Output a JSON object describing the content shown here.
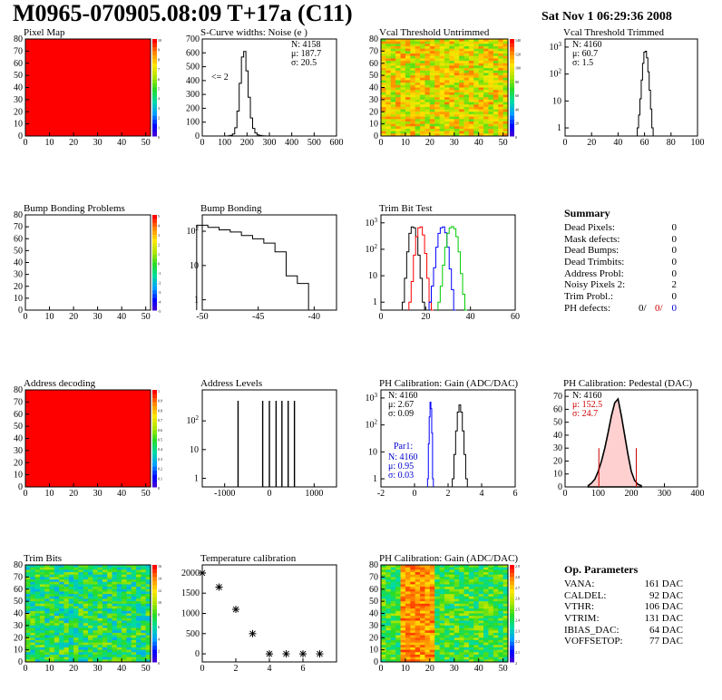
{
  "header": {
    "title": "M0965-070905.08:09 T+17a (C11)",
    "date": "Sat Nov  1 06:29:36 2008"
  },
  "colors": {
    "map_red": "#ff0000",
    "hist_black": "#000000",
    "trim_red": "#ff0000",
    "trim_blue": "#0000ff",
    "trim_green": "#00cc00",
    "stat_red": "#cc0000",
    "stat_blue": "#0000cc"
  },
  "summary": {
    "title": "Summary",
    "rows": [
      {
        "label": "Dead Pixels:",
        "value": "0"
      },
      {
        "label": "Mask defects:",
        "value": "0"
      },
      {
        "label": "Dead Bumps:",
        "value": "0"
      },
      {
        "label": "Dead Trimbits:",
        "value": "0"
      },
      {
        "label": "Address Probl:",
        "value": "0"
      },
      {
        "label": "Noisy Pixels 2:",
        "value": "2"
      },
      {
        "label": "Trim Probl.:",
        "value": "0"
      }
    ],
    "ph_label": "PH defects:",
    "ph_values": [
      "0/",
      "0/",
      "0"
    ]
  },
  "op_params": {
    "title": "Op. Parameters",
    "rows": [
      {
        "label": "VANA:",
        "value": "161 DAC"
      },
      {
        "label": "CALDEL:",
        "value": "92 DAC"
      },
      {
        "label": "VTHR:",
        "value": "106 DAC"
      },
      {
        "label": "VTRIM:",
        "value": "131 DAC"
      },
      {
        "label": "IBIAS_DAC:",
        "value": "64 DAC"
      },
      {
        "label": "VOFFSETOP:",
        "value": "77 DAC"
      }
    ]
  },
  "chart_data": [
    {
      "id": "pixel_map",
      "type": "heatmap",
      "title": "Pixel Map",
      "xlim": [
        0,
        52
      ],
      "ylim": [
        0,
        80
      ],
      "xticks": [
        0,
        10,
        20,
        30,
        40,
        50
      ],
      "yticks": [
        0,
        10,
        20,
        30,
        40,
        50,
        60,
        70,
        80
      ],
      "pattern": "uniform",
      "zlim": [
        0,
        10
      ],
      "zticks": [
        "10",
        "9",
        "8",
        "7",
        "6",
        "5",
        "4",
        "3",
        "2",
        "1",
        "0"
      ]
    },
    {
      "id": "scurve",
      "type": "line",
      "title": "S-Curve widths: Noise (e )",
      "xlim": [
        0,
        600
      ],
      "ylim": [
        0,
        700
      ],
      "xticks": [
        0,
        100,
        200,
        300,
        400,
        500,
        600
      ],
      "yticks": [
        0,
        100,
        200,
        300,
        400,
        500,
        600,
        700
      ],
      "stats": [
        "N: 4158",
        "μ: 187.7",
        "σ: 20.5"
      ],
      "annotation": "<= 2",
      "x": [
        120,
        130,
        140,
        150,
        160,
        170,
        180,
        190,
        200,
        210,
        220,
        230,
        240,
        250,
        260,
        270,
        280,
        290
      ],
      "y": [
        2,
        5,
        15,
        60,
        180,
        380,
        570,
        610,
        470,
        280,
        130,
        55,
        22,
        8,
        4,
        2,
        1,
        0
      ]
    },
    {
      "id": "vcal_untrimmed",
      "type": "heatmap",
      "title": "Vcal Threshold Untrimmed",
      "xlim": [
        0,
        52
      ],
      "ylim": [
        0,
        80
      ],
      "xticks": [
        0,
        10,
        20,
        30,
        40,
        50
      ],
      "yticks": [
        0,
        10,
        20,
        30,
        40,
        50,
        60,
        70,
        80
      ],
      "pattern": "noisy_warm",
      "zlim": [
        0,
        140
      ],
      "zticks": [
        "140",
        "120",
        "100",
        "80",
        "60",
        "40",
        "20",
        "0"
      ]
    },
    {
      "id": "vcal_trimmed",
      "type": "line",
      "title": "Vcal Threshold Trimmed",
      "log": true,
      "xlim": [
        0,
        100
      ],
      "ylim": [
        0.5,
        2000
      ],
      "xticks": [
        0,
        20,
        40,
        60,
        80,
        100
      ],
      "yticks": [
        1,
        10,
        100,
        1000
      ],
      "stats": [
        "N: 4160",
        "μ: 60.7",
        "σ:  1.5"
      ],
      "x": [
        55,
        56,
        57,
        58,
        59,
        60,
        61,
        62,
        63,
        64,
        65,
        66,
        67
      ],
      "y": [
        1,
        3,
        12,
        60,
        250,
        650,
        700,
        400,
        120,
        25,
        5,
        1,
        0
      ]
    },
    {
      "id": "bump_problems",
      "type": "heatmap",
      "title": "Bump Bonding Problems",
      "xlim": [
        0,
        52
      ],
      "ylim": [
        0,
        80
      ],
      "xticks": [
        0,
        10,
        20,
        30,
        40,
        50
      ],
      "yticks": [
        0,
        10,
        20,
        30,
        40,
        50,
        60,
        70,
        80
      ],
      "pattern": "empty",
      "zlim": [
        -5,
        5
      ],
      "zticks": [
        "5",
        "4",
        "3",
        "2",
        "1",
        "0",
        "-1",
        "-2",
        "-3",
        "-4",
        "-5"
      ]
    },
    {
      "id": "bump_bonding",
      "type": "line",
      "title": "Bump Bonding",
      "log": true,
      "xlim": [
        -50,
        -38
      ],
      "ylim": [
        0.5,
        300
      ],
      "xticks": [
        -50,
        -45,
        -40
      ],
      "yticks": [
        1,
        10,
        100
      ],
      "x": [
        -50,
        -49,
        -48,
        -47,
        -46,
        -45,
        -44,
        -43,
        -42,
        -41,
        -40
      ],
      "y": [
        150,
        130,
        110,
        95,
        75,
        60,
        45,
        25,
        5,
        3,
        0
      ]
    },
    {
      "id": "trim_bit_test",
      "type": "line",
      "title": "Trim Bit Test",
      "log": true,
      "xlim": [
        0,
        60
      ],
      "ylim": [
        0.5,
        2000
      ],
      "xticks": [
        0,
        20,
        40,
        60
      ],
      "yticks": [
        1,
        10,
        100,
        1000
      ],
      "series": [
        {
          "color": "#000000",
          "x": [
            10,
            11,
            12,
            13,
            14,
            15,
            16,
            17,
            18,
            19,
            20
          ],
          "y": [
            1,
            8,
            80,
            400,
            700,
            650,
            300,
            60,
            8,
            1,
            0
          ]
        },
        {
          "color": "#ff0000",
          "x": [
            13,
            14,
            15,
            16,
            17,
            18,
            19,
            20,
            21,
            22,
            23
          ],
          "y": [
            1,
            6,
            60,
            300,
            650,
            700,
            350,
            70,
            8,
            1,
            0
          ]
        },
        {
          "color": "#0000ff",
          "x": [
            22,
            23,
            24,
            25,
            26,
            27,
            28,
            29,
            30,
            31,
            32,
            33
          ],
          "y": [
            1,
            4,
            20,
            120,
            400,
            650,
            700,
            420,
            120,
            18,
            3,
            0
          ]
        },
        {
          "color": "#00cc00",
          "x": [
            26,
            27,
            28,
            29,
            30,
            31,
            32,
            33,
            34,
            35,
            36,
            37,
            38
          ],
          "y": [
            1,
            4,
            25,
            120,
            400,
            650,
            720,
            600,
            300,
            80,
            12,
            2,
            0
          ]
        }
      ]
    },
    {
      "id": "address_decoding",
      "type": "heatmap",
      "title": "Address decoding",
      "xlim": [
        0,
        52
      ],
      "ylim": [
        0,
        80
      ],
      "xticks": [
        0,
        10,
        20,
        30,
        40,
        50
      ],
      "yticks": [
        0,
        10,
        20,
        30,
        40,
        50,
        60,
        70,
        80
      ],
      "pattern": "uniform",
      "zlim": [
        0,
        1
      ],
      "zticks": [
        "1",
        "0.9",
        "0.8",
        "0.7",
        "0.6",
        "0.5",
        "0.4",
        "0.3",
        "0.2",
        "0.1",
        "0"
      ]
    },
    {
      "id": "address_levels",
      "type": "line",
      "title": "Address Levels",
      "log": true,
      "xlim": [
        -1500,
        1500
      ],
      "ylim": [
        0.5,
        1200
      ],
      "xticks": [
        -1000,
        0,
        1000
      ],
      "yticks": [
        1,
        10,
        100
      ],
      "peaks": [
        -700,
        -150,
        0,
        150,
        280,
        420,
        560
      ]
    },
    {
      "id": "ph_gain",
      "type": "line",
      "title": "PH Calibration: Gain (ADC/DAC)",
      "log": true,
      "xlim": [
        -2,
        6
      ],
      "ylim": [
        0.5,
        2000
      ],
      "xticks": [
        -2,
        0,
        2,
        4,
        6
      ],
      "yticks": [
        1,
        10,
        100,
        1000
      ],
      "stats": [
        "N: 4160",
        "μ: 2.67",
        "σ: 0.09"
      ],
      "stats2_title": "Par1:",
      "stats2": [
        "N: 4160",
        "μ: 0.95",
        "σ: 0.03"
      ],
      "series": [
        {
          "color": "#0000ff",
          "x": [
            0.8,
            0.85,
            0.9,
            0.95,
            1.0,
            1.05,
            1.1
          ],
          "y": [
            1,
            20,
            200,
            700,
            400,
            50,
            1
          ]
        },
        {
          "color": "#000000",
          "x": [
            2.3,
            2.4,
            2.5,
            2.6,
            2.7,
            2.8,
            2.9,
            3.0,
            3.1
          ],
          "y": [
            1,
            8,
            60,
            300,
            550,
            300,
            60,
            8,
            1
          ]
        }
      ]
    },
    {
      "id": "ph_pedestal",
      "type": "line",
      "title": "PH Calibration: Pedestal (DAC)",
      "xlim": [
        0,
        400
      ],
      "ylim": [
        0,
        75
      ],
      "xticks": [
        0,
        100,
        200,
        300,
        400
      ],
      "yticks": [
        0,
        10,
        20,
        30,
        40,
        50,
        60,
        70
      ],
      "stats": [
        "N: 4160",
        "μ: 152.5",
        "σ: 24.7"
      ],
      "x": [
        70,
        80,
        90,
        100,
        110,
        120,
        130,
        140,
        150,
        160,
        170,
        180,
        190,
        200,
        210,
        220,
        230
      ],
      "y": [
        1,
        3,
        6,
        12,
        20,
        30,
        42,
        55,
        65,
        68,
        55,
        40,
        25,
        12,
        5,
        2,
        1
      ],
      "markers": [
        102,
        215
      ]
    },
    {
      "id": "trim_bits",
      "type": "heatmap",
      "title": "Trim Bits",
      "xlim": [
        0,
        52
      ],
      "ylim": [
        0,
        80
      ],
      "xticks": [
        0,
        10,
        20,
        30,
        40,
        50
      ],
      "yticks": [
        0,
        10,
        20,
        30,
        40,
        50,
        60,
        70,
        80
      ],
      "pattern": "noisy_green",
      "zlim": [
        0,
        16
      ],
      "zticks": [
        "16",
        "14",
        "12",
        "10",
        "8",
        "6",
        "4",
        "2",
        "0"
      ]
    },
    {
      "id": "temperature",
      "type": "scatter",
      "title": "Temperature calibration",
      "xlim": [
        0,
        8
      ],
      "ylim": [
        -200,
        2200
      ],
      "xticks": [
        0,
        2,
        4,
        6
      ],
      "yticks": [
        0,
        500,
        1000,
        1500,
        2000
      ],
      "x": [
        0,
        1,
        2,
        3,
        4,
        5,
        6,
        7
      ],
      "y": [
        2000,
        1650,
        1100,
        500,
        0,
        0,
        0,
        0
      ]
    },
    {
      "id": "ph_gain_map",
      "type": "heatmap",
      "title": "PH Calibration: Gain (ADC/DAC)",
      "xlim": [
        0,
        52
      ],
      "ylim": [
        0,
        80
      ],
      "xticks": [
        0,
        10,
        20,
        30,
        40,
        50
      ],
      "yticks": [
        0,
        10,
        20,
        30,
        40,
        50,
        60,
        70,
        80
      ],
      "pattern": "gain_cols",
      "zlim": [
        2,
        3
      ],
      "zticks": [
        "2.9",
        "2.8",
        "2.7",
        "2.6",
        "2.5",
        "2.4",
        "2.3",
        "2.2",
        "2.1",
        "2"
      ]
    }
  ]
}
